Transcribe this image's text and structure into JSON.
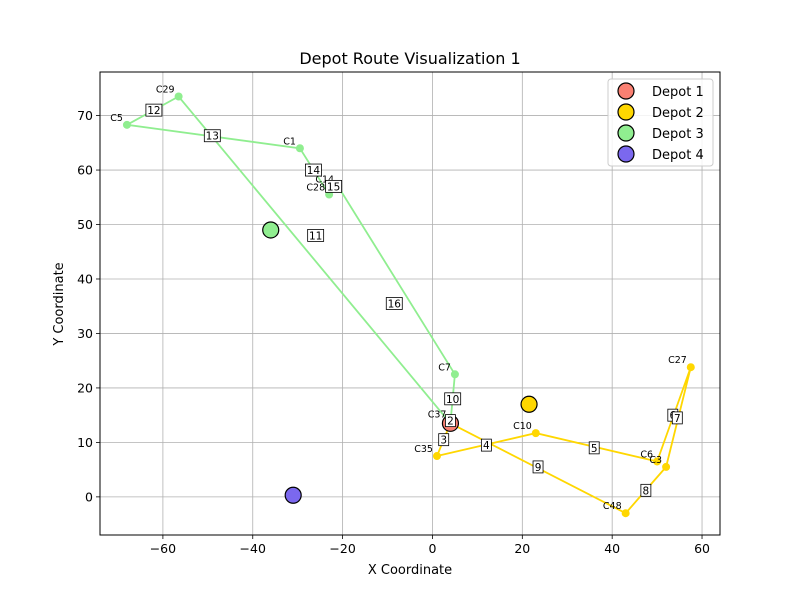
{
  "chart_data": {
    "type": "scatter",
    "title": "Depot Route Visualization 1",
    "xlabel": "X Coordinate",
    "ylabel": "Y Coordinate",
    "xlim": [
      -74,
      64
    ],
    "ylim": [
      -7,
      78
    ],
    "xticks": [
      -60,
      -40,
      -20,
      0,
      20,
      40,
      60
    ],
    "yticks": [
      0,
      10,
      20,
      30,
      40,
      50,
      60,
      70
    ],
    "grid": true,
    "legend_position": "top-right",
    "depots": [
      {
        "name": "Depot 1",
        "x": 4,
        "y": 13.5,
        "color": "#fa8072"
      },
      {
        "name": "Depot 2",
        "x": 21.5,
        "y": 17,
        "color": "#ffd700"
      },
      {
        "name": "Depot 3",
        "x": -36,
        "y": 49,
        "color": "#90ee90"
      },
      {
        "name": "Depot 4",
        "x": -31,
        "y": 0.3,
        "color": "#7b68ee"
      }
    ],
    "routes": [
      {
        "depot": "Depot 3",
        "color": "#90ee90",
        "path": [
          [
            4,
            13.5
          ],
          [
            5,
            22.5
          ],
          [
            -21,
            57
          ],
          [
            -23,
            55.5
          ],
          [
            -29.5,
            64
          ],
          [
            -68,
            68.3
          ],
          [
            -56.5,
            73.5
          ],
          [
            4,
            13.5
          ]
        ]
      },
      {
        "depot": "Depot 2",
        "color": "#ffd700",
        "path": [
          [
            4,
            13.5
          ],
          [
            1,
            7.5
          ],
          [
            23,
            11.7
          ],
          [
            50,
            6.5
          ],
          [
            57.5,
            23.8
          ],
          [
            52,
            5.5
          ],
          [
            43,
            -3
          ],
          [
            4,
            13.5
          ]
        ]
      }
    ],
    "customers": [
      {
        "label": "C7",
        "x": 5,
        "y": 22.5,
        "color": "#90ee90"
      },
      {
        "label": "C14",
        "x": -21,
        "y": 57,
        "color": "#90ee90"
      },
      {
        "label": "C28",
        "x": -23,
        "y": 55.5,
        "color": "#90ee90"
      },
      {
        "label": "C1",
        "x": -29.5,
        "y": 64,
        "color": "#90ee90"
      },
      {
        "label": "C5",
        "x": -68,
        "y": 68.3,
        "color": "#90ee90"
      },
      {
        "label": "C29",
        "x": -56.5,
        "y": 73.5,
        "color": "#90ee90"
      },
      {
        "label": "C37",
        "x": 4,
        "y": 13.8,
        "color": "#ffd700"
      },
      {
        "label": "C35",
        "x": 1,
        "y": 7.5,
        "color": "#ffd700"
      },
      {
        "label": "C10",
        "x": 23,
        "y": 11.7,
        "color": "#ffd700"
      },
      {
        "label": "C6",
        "x": 50,
        "y": 6.5,
        "color": "#ffd700"
      },
      {
        "label": "C27",
        "x": 57.5,
        "y": 23.8,
        "color": "#ffd700"
      },
      {
        "label": "C3",
        "x": 52,
        "y": 5.5,
        "color": "#ffd700"
      },
      {
        "label": "C48",
        "x": 43,
        "y": -3,
        "color": "#ffd700"
      }
    ],
    "step_labels": [
      {
        "text": "2",
        "x": 4,
        "y": 14
      },
      {
        "text": "3",
        "x": 2.5,
        "y": 10.5
      },
      {
        "text": "4",
        "x": 12,
        "y": 9.5
      },
      {
        "text": "5",
        "x": 36,
        "y": 9
      },
      {
        "text": "6",
        "x": 53.5,
        "y": 15
      },
      {
        "text": "7",
        "x": 54.5,
        "y": 14.5
      },
      {
        "text": "8",
        "x": 47.5,
        "y": 1.2
      },
      {
        "text": "9",
        "x": 23.5,
        "y": 5.5
      },
      {
        "text": "10",
        "x": 4.5,
        "y": 18
      },
      {
        "text": "11",
        "x": -26,
        "y": 48
      },
      {
        "text": "12",
        "x": -62,
        "y": 71
      },
      {
        "text": "13",
        "x": -49,
        "y": 66.3
      },
      {
        "text": "14",
        "x": -26.5,
        "y": 60
      },
      {
        "text": "15",
        "x": -22,
        "y": 57
      },
      {
        "text": "16",
        "x": -8.5,
        "y": 35.5
      }
    ]
  }
}
